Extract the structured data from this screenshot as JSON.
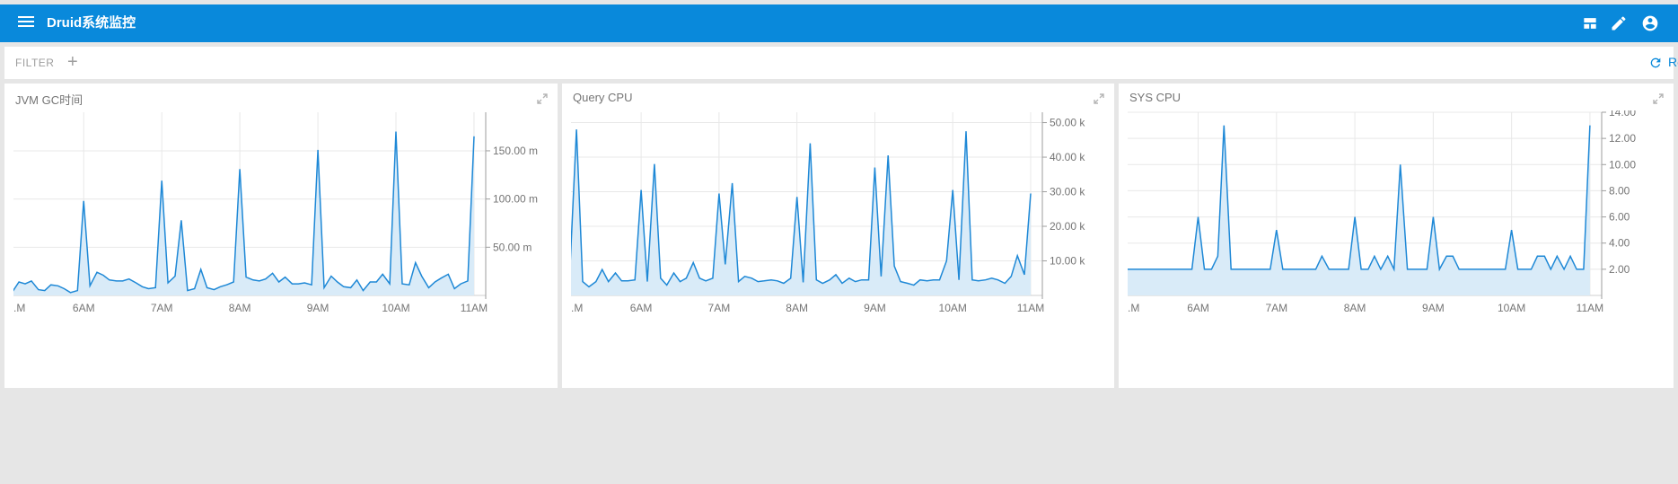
{
  "app": {
    "title": "Druid系统监控"
  },
  "filter": {
    "label": "FILTER",
    "add_symbol": "+",
    "reset_label": "Reset"
  },
  "colors": {
    "accent": "#0989db",
    "line": "#1e88d6",
    "fill": "#d9ebf8",
    "grid": "#e8e8e8"
  },
  "icons": [
    "menu-icon",
    "dashboard-icon",
    "edit-icon",
    "account-circle-icon",
    "refresh-icon",
    "expand-icon",
    "add-icon"
  ],
  "panels": [
    {
      "title": "JVM GC时间"
    },
    {
      "title": "Query CPU"
    },
    {
      "title": "SYS CPU"
    }
  ],
  "chart_data": [
    {
      "type": "area",
      "title": "JVM GC时间",
      "x_ticks": [
        ".M",
        "6AM",
        "7AM",
        "8AM",
        "9AM",
        "10AM",
        "11AM"
      ],
      "y_ticks": [
        {
          "value": 50,
          "label": "50.00 m"
        },
        {
          "value": 100,
          "label": "100.00 m"
        },
        {
          "value": 150,
          "label": "150.00 m"
        }
      ],
      "x_range": [
        5.1,
        11.15
      ],
      "ylim": [
        0,
        190
      ],
      "series": [
        {
          "values": [
            [
              5.0,
              18
            ],
            [
              5.08,
              3
            ],
            [
              5.17,
              14
            ],
            [
              5.25,
              12
            ],
            [
              5.33,
              15
            ],
            [
              5.42,
              6
            ],
            [
              5.5,
              5
            ],
            [
              5.58,
              11
            ],
            [
              5.67,
              10
            ],
            [
              5.75,
              7
            ],
            [
              5.83,
              3
            ],
            [
              5.92,
              5
            ],
            [
              6.0,
              98
            ],
            [
              6.08,
              10
            ],
            [
              6.17,
              24
            ],
            [
              6.25,
              21
            ],
            [
              6.33,
              16
            ],
            [
              6.42,
              15
            ],
            [
              6.5,
              15
            ],
            [
              6.58,
              17
            ],
            [
              6.67,
              13
            ],
            [
              6.75,
              9
            ],
            [
              6.83,
              7
            ],
            [
              6.92,
              8
            ],
            [
              7.0,
              119
            ],
            [
              7.08,
              13
            ],
            [
              7.17,
              20
            ],
            [
              7.25,
              78
            ],
            [
              7.33,
              5
            ],
            [
              7.42,
              7
            ],
            [
              7.5,
              27
            ],
            [
              7.58,
              8
            ],
            [
              7.67,
              6
            ],
            [
              7.75,
              9
            ],
            [
              7.83,
              11
            ],
            [
              7.92,
              14
            ],
            [
              8.0,
              131
            ],
            [
              8.08,
              19
            ],
            [
              8.17,
              16
            ],
            [
              8.25,
              15
            ],
            [
              8.33,
              17
            ],
            [
              8.42,
              23
            ],
            [
              8.5,
              14
            ],
            [
              8.58,
              19
            ],
            [
              8.67,
              12
            ],
            [
              8.75,
              12
            ],
            [
              8.83,
              13
            ],
            [
              8.92,
              11
            ],
            [
              9.0,
              151
            ],
            [
              9.08,
              8
            ],
            [
              9.17,
              20
            ],
            [
              9.25,
              14
            ],
            [
              9.33,
              9
            ],
            [
              9.42,
              8
            ],
            [
              9.5,
              16
            ],
            [
              9.58,
              5
            ],
            [
              9.67,
              14
            ],
            [
              9.75,
              14
            ],
            [
              9.83,
              22
            ],
            [
              9.92,
              12
            ],
            [
              10.0,
              170
            ],
            [
              10.08,
              12
            ],
            [
              10.17,
              11
            ],
            [
              10.25,
              34
            ],
            [
              10.33,
              20
            ],
            [
              10.42,
              8
            ],
            [
              10.5,
              14
            ],
            [
              10.58,
              18
            ],
            [
              10.67,
              22
            ],
            [
              10.75,
              7
            ],
            [
              10.83,
              12
            ],
            [
              10.92,
              15
            ],
            [
              11.0,
              165
            ]
          ]
        }
      ]
    },
    {
      "type": "area",
      "title": "Query CPU",
      "x_ticks": [
        ".M",
        "6AM",
        "7AM",
        "8AM",
        "9AM",
        "10AM",
        "11AM"
      ],
      "y_ticks": [
        {
          "value": 10000,
          "label": "10.00 k"
        },
        {
          "value": 20000,
          "label": "20.00 k"
        },
        {
          "value": 30000,
          "label": "30.00 k"
        },
        {
          "value": 40000,
          "label": "40.00 k"
        },
        {
          "value": 50000,
          "label": "50.00 k"
        }
      ],
      "x_range": [
        5.1,
        11.15
      ],
      "ylim": [
        0,
        53000
      ],
      "series": [
        {
          "values": [
            [
              5.0,
              4500
            ],
            [
              5.08,
              4800
            ],
            [
              5.17,
              48000
            ],
            [
              5.25,
              4000
            ],
            [
              5.33,
              2500
            ],
            [
              5.42,
              4000
            ],
            [
              5.5,
              7500
            ],
            [
              5.58,
              4000
            ],
            [
              5.67,
              6500
            ],
            [
              5.75,
              4200
            ],
            [
              5.83,
              4200
            ],
            [
              5.92,
              4500
            ],
            [
              6.0,
              30500
            ],
            [
              6.08,
              4000
            ],
            [
              6.17,
              38000
            ],
            [
              6.25,
              5000
            ],
            [
              6.33,
              3000
            ],
            [
              6.42,
              6500
            ],
            [
              6.5,
              4000
            ],
            [
              6.58,
              5000
            ],
            [
              6.67,
              9500
            ],
            [
              6.75,
              5000
            ],
            [
              6.83,
              4200
            ],
            [
              6.92,
              5000
            ],
            [
              7.0,
              29500
            ],
            [
              7.08,
              9000
            ],
            [
              7.17,
              32500
            ],
            [
              7.25,
              4000
            ],
            [
              7.33,
              5500
            ],
            [
              7.42,
              5000
            ],
            [
              7.5,
              4000
            ],
            [
              7.58,
              4200
            ],
            [
              7.67,
              4500
            ],
            [
              7.75,
              4200
            ],
            [
              7.83,
              3500
            ],
            [
              7.92,
              5000
            ],
            [
              8.0,
              28500
            ],
            [
              8.08,
              3800
            ],
            [
              8.17,
              44000
            ],
            [
              8.25,
              4500
            ],
            [
              8.33,
              3500
            ],
            [
              8.42,
              4500
            ],
            [
              8.5,
              6000
            ],
            [
              8.58,
              3500
            ],
            [
              8.67,
              5000
            ],
            [
              8.75,
              4000
            ],
            [
              8.83,
              4500
            ],
            [
              8.92,
              4500
            ],
            [
              9.0,
              37000
            ],
            [
              9.08,
              5500
            ],
            [
              9.17,
              40500
            ],
            [
              9.25,
              8500
            ],
            [
              9.33,
              4000
            ],
            [
              9.42,
              3500
            ],
            [
              9.5,
              3000
            ],
            [
              9.58,
              4500
            ],
            [
              9.67,
              4200
            ],
            [
              9.75,
              4500
            ],
            [
              9.83,
              4500
            ],
            [
              9.92,
              10000
            ],
            [
              10.0,
              30500
            ],
            [
              10.08,
              4500
            ],
            [
              10.17,
              47500
            ],
            [
              10.25,
              4500
            ],
            [
              10.33,
              4200
            ],
            [
              10.42,
              4500
            ],
            [
              10.5,
              5000
            ],
            [
              10.58,
              4500
            ],
            [
              10.67,
              3500
            ],
            [
              10.75,
              5500
            ],
            [
              10.83,
              11500
            ],
            [
              10.92,
              6000
            ],
            [
              11.0,
              29500
            ]
          ]
        }
      ]
    },
    {
      "type": "area",
      "title": "SYS CPU",
      "x_ticks": [
        ".M",
        "6AM",
        "7AM",
        "8AM",
        "9AM",
        "10AM",
        "11AM"
      ],
      "y_ticks": [
        {
          "value": 2,
          "label": "2.00"
        },
        {
          "value": 4,
          "label": "4.00"
        },
        {
          "value": 6,
          "label": "6.00"
        },
        {
          "value": 8,
          "label": "8.00"
        },
        {
          "value": 10,
          "label": "10.00"
        },
        {
          "value": 12,
          "label": "12.00"
        },
        {
          "value": 14,
          "label": "14.00"
        }
      ],
      "x_range": [
        5.1,
        11.15
      ],
      "ylim": [
        0,
        14
      ],
      "series": [
        {
          "values": [
            [
              5.0,
              3
            ],
            [
              5.08,
              2
            ],
            [
              5.17,
              2
            ],
            [
              5.25,
              2
            ],
            [
              5.33,
              2
            ],
            [
              5.42,
              2
            ],
            [
              5.5,
              2
            ],
            [
              5.58,
              2
            ],
            [
              5.67,
              2
            ],
            [
              5.75,
              2
            ],
            [
              5.83,
              2
            ],
            [
              5.92,
              2
            ],
            [
              6.0,
              6
            ],
            [
              6.08,
              2
            ],
            [
              6.17,
              2
            ],
            [
              6.25,
              3
            ],
            [
              6.33,
              13
            ],
            [
              6.42,
              2
            ],
            [
              6.5,
              2
            ],
            [
              6.58,
              2
            ],
            [
              6.67,
              2
            ],
            [
              6.75,
              2
            ],
            [
              6.83,
              2
            ],
            [
              6.92,
              2
            ],
            [
              7.0,
              5
            ],
            [
              7.08,
              2
            ],
            [
              7.17,
              2
            ],
            [
              7.25,
              2
            ],
            [
              7.33,
              2
            ],
            [
              7.42,
              2
            ],
            [
              7.5,
              2
            ],
            [
              7.58,
              3
            ],
            [
              7.67,
              2
            ],
            [
              7.75,
              2
            ],
            [
              7.83,
              2
            ],
            [
              7.92,
              2
            ],
            [
              8.0,
              6
            ],
            [
              8.08,
              2
            ],
            [
              8.17,
              2
            ],
            [
              8.25,
              3
            ],
            [
              8.33,
              2
            ],
            [
              8.42,
              3
            ],
            [
              8.5,
              2
            ],
            [
              8.58,
              10
            ],
            [
              8.67,
              2
            ],
            [
              8.75,
              2
            ],
            [
              8.83,
              2
            ],
            [
              8.92,
              2
            ],
            [
              9.0,
              6
            ],
            [
              9.08,
              2
            ],
            [
              9.17,
              3
            ],
            [
              9.25,
              3
            ],
            [
              9.33,
              2
            ],
            [
              9.42,
              2
            ],
            [
              9.5,
              2
            ],
            [
              9.58,
              2
            ],
            [
              9.67,
              2
            ],
            [
              9.75,
              2
            ],
            [
              9.83,
              2
            ],
            [
              9.92,
              2
            ],
            [
              10.0,
              5
            ],
            [
              10.08,
              2
            ],
            [
              10.17,
              2
            ],
            [
              10.25,
              2
            ],
            [
              10.33,
              3
            ],
            [
              10.42,
              3
            ],
            [
              10.5,
              2
            ],
            [
              10.58,
              3
            ],
            [
              10.67,
              2
            ],
            [
              10.75,
              3
            ],
            [
              10.83,
              2
            ],
            [
              10.92,
              2
            ],
            [
              11.0,
              13
            ]
          ]
        }
      ]
    }
  ]
}
